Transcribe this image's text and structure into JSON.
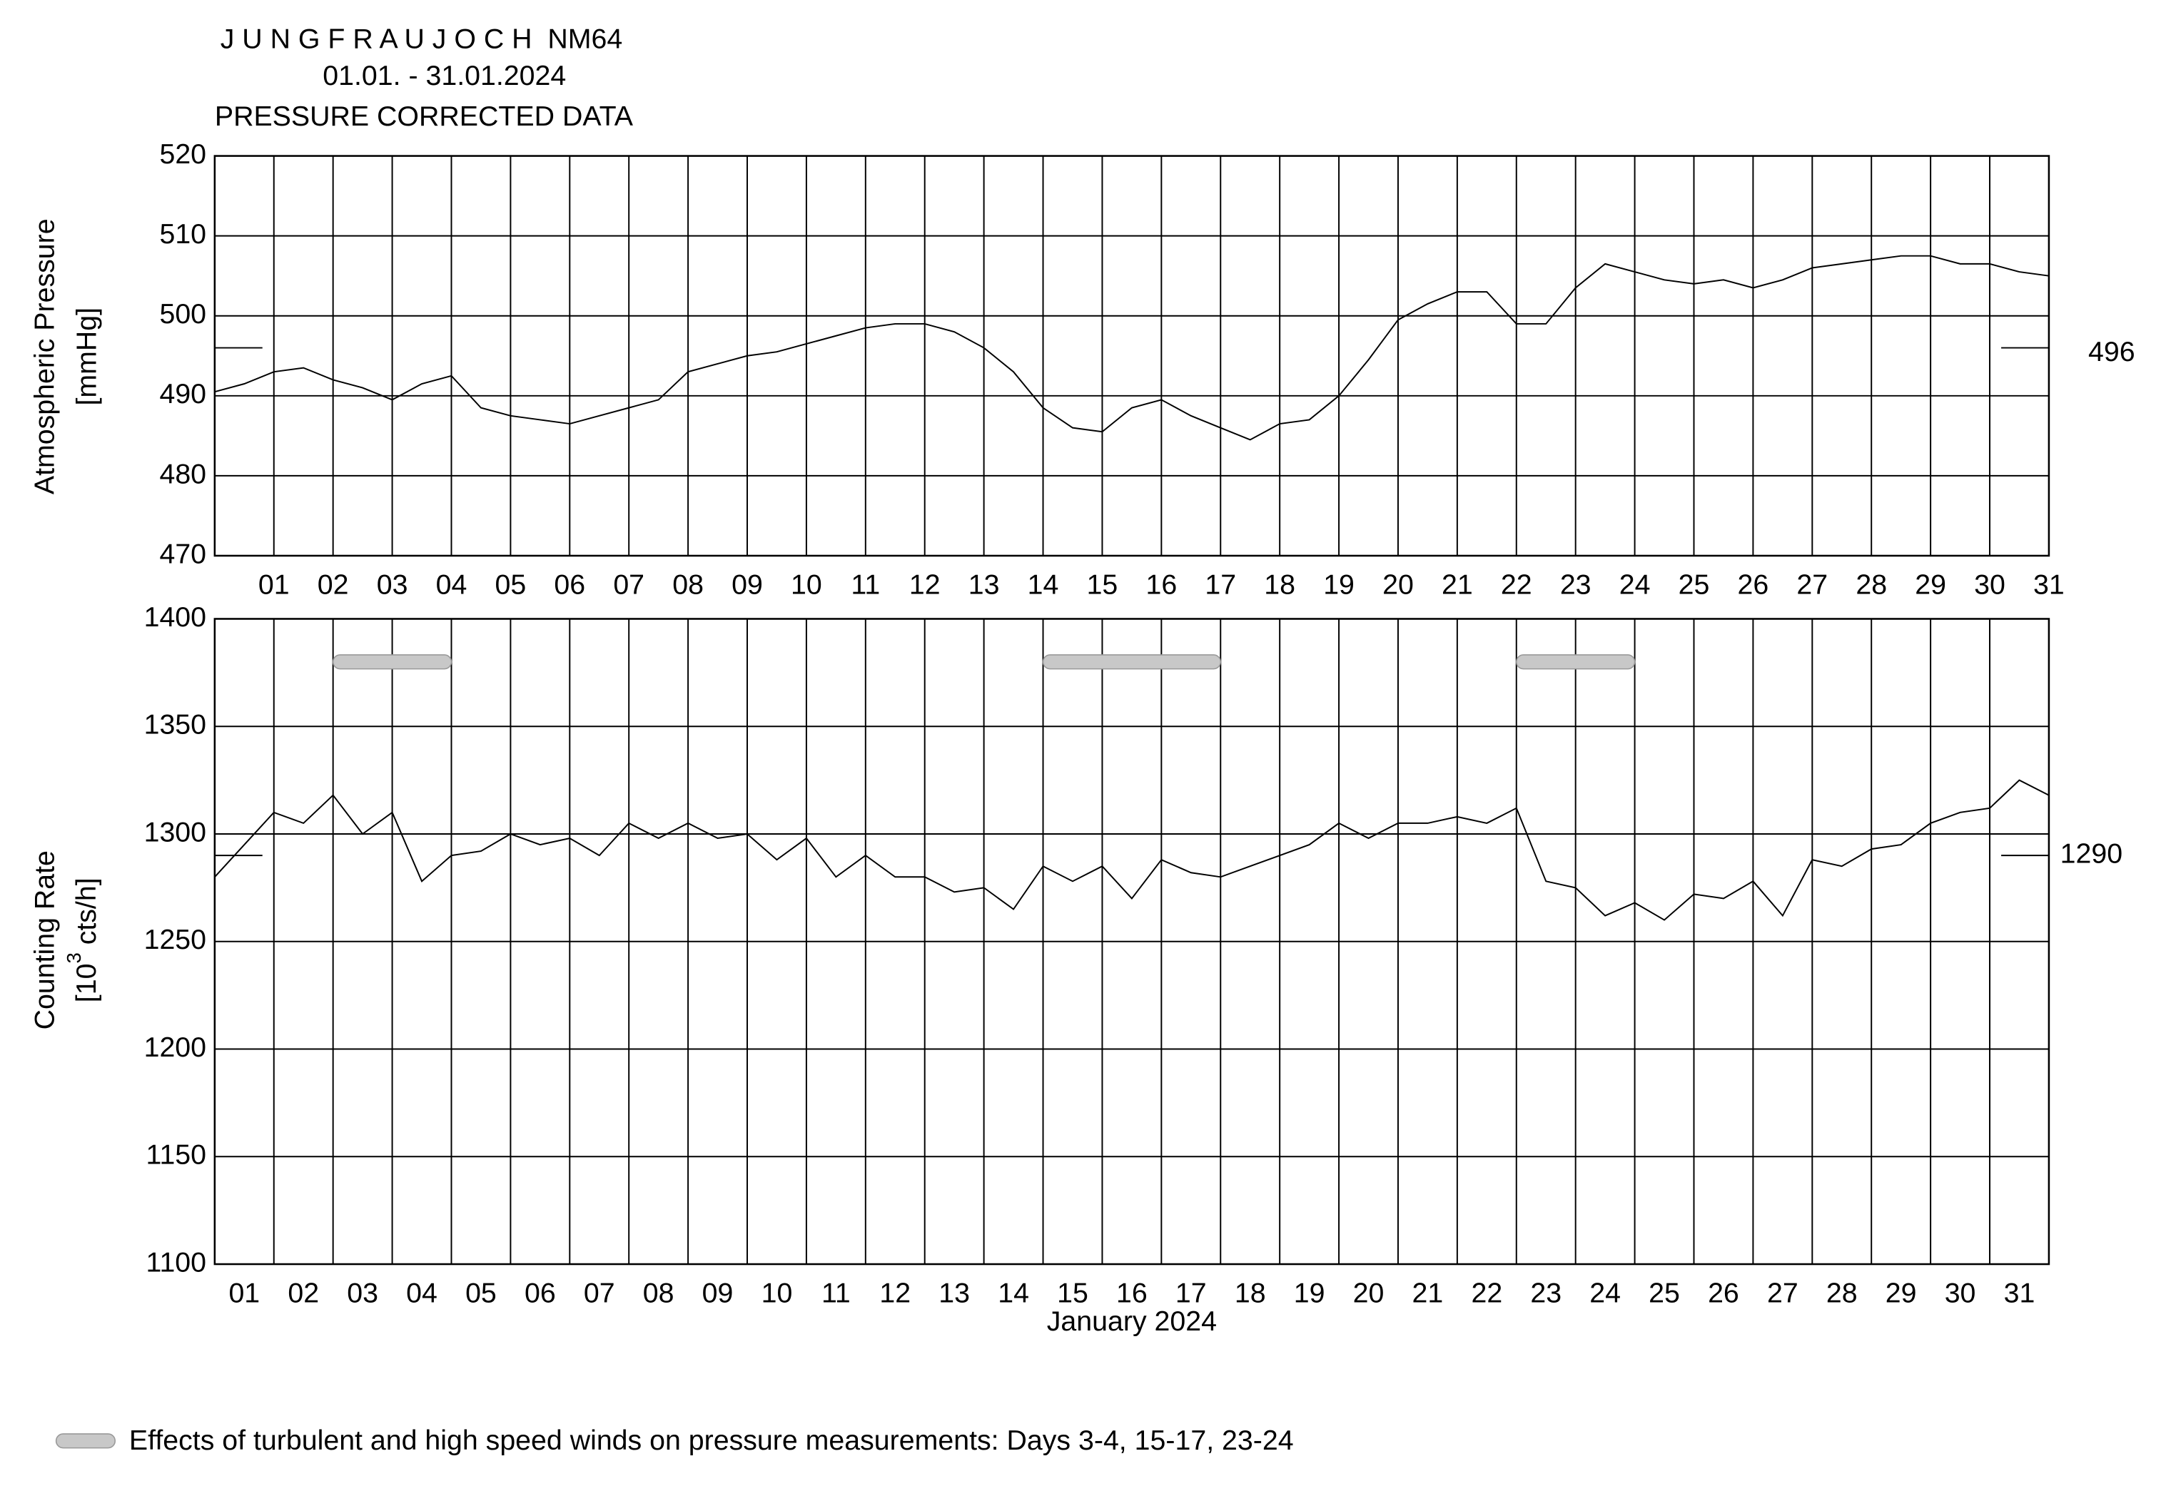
{
  "chart_data": [
    {
      "type": "line",
      "title": "J U N G F R A U J O C H  NM64",
      "subtitle": "01.01. - 31.01.2024",
      "note": "PRESSURE CORRECTED DATA",
      "ylabel": [
        "Atmospheric Pressure",
        "[mmHg]"
      ],
      "x": [
        0,
        0.5,
        1,
        1.5,
        2,
        2.5,
        3,
        3.5,
        4,
        4.5,
        5,
        5.5,
        6,
        6.5,
        7,
        7.5,
        8,
        8.5,
        9,
        9.5,
        10,
        10.5,
        11,
        11.5,
        12,
        12.5,
        13,
        13.5,
        14,
        14.5,
        15,
        15.5,
        16,
        16.5,
        17,
        17.5,
        18,
        18.5,
        19,
        19.5,
        20,
        20.5,
        21,
        21.5,
        22,
        22.5,
        23,
        23.5,
        24,
        24.5,
        25,
        25.5,
        26,
        26.5,
        27,
        27.5,
        28,
        28.5,
        29,
        29.5,
        30,
        30.5,
        31
      ],
      "values": [
        490.5,
        491.5,
        493,
        493.5,
        492,
        491,
        489.5,
        491.5,
        492.5,
        488.5,
        487.5,
        487,
        486.5,
        487.5,
        488.5,
        489.5,
        493,
        494,
        495,
        495.5,
        496.5,
        497.5,
        498.5,
        499,
        499,
        498,
        496,
        493,
        488.5,
        486,
        485.5,
        488.5,
        489.5,
        487.5,
        486,
        484.5,
        486.5,
        487,
        490,
        494.5,
        499.5,
        501.5,
        503,
        503,
        499,
        499,
        503.5,
        506.5,
        505.5,
        504.5,
        504,
        504.5,
        503.5,
        504.5,
        506,
        506.5,
        507,
        507.5,
        507.5,
        506.5,
        506.5,
        505.5,
        505
      ],
      "color": "#000000",
      "xlim": [
        0,
        31
      ],
      "ylim": [
        470,
        520
      ],
      "yticks": [
        470,
        480,
        490,
        500,
        510,
        520
      ],
      "xticks": [
        {
          "value": 1,
          "label": "01"
        },
        {
          "value": 2,
          "label": "02"
        },
        {
          "value": 3,
          "label": "03"
        },
        {
          "value": 4,
          "label": "04"
        },
        {
          "value": 5,
          "label": "05"
        },
        {
          "value": 6,
          "label": "06"
        },
        {
          "value": 7,
          "label": "07"
        },
        {
          "value": 8,
          "label": "08"
        },
        {
          "value": 9,
          "label": "09"
        },
        10,
        11,
        12,
        13,
        14,
        15,
        16,
        17,
        18,
        19,
        20,
        21,
        22,
        23,
        24,
        25,
        26,
        27,
        28,
        29,
        30,
        31
      ],
      "xgrid": [
        1,
        2,
        3,
        4,
        5,
        6,
        7,
        8,
        9,
        10,
        11,
        12,
        13,
        14,
        15,
        16,
        17,
        18,
        19,
        20,
        21,
        22,
        23,
        24,
        25,
        26,
        27,
        28,
        29,
        30
      ],
      "reference_line": 496,
      "grid": true
    },
    {
      "type": "line",
      "ylabel": [
        "Counting Rate"
      ],
      "ylabel_unit": {
        "pre": "[10",
        "sup": "3",
        "post": " cts/h]"
      },
      "xlabel": "January 2024",
      "x": [
        0,
        0.5,
        1,
        1.5,
        2,
        2.5,
        3,
        3.5,
        4,
        4.5,
        5,
        5.5,
        6,
        6.5,
        7,
        7.5,
        8,
        8.5,
        9,
        9.5,
        10,
        10.5,
        11,
        11.5,
        12,
        12.5,
        13,
        13.5,
        14,
        14.5,
        15,
        15.5,
        16,
        16.5,
        17,
        17.5,
        18,
        18.5,
        19,
        19.5,
        20,
        20.5,
        21,
        21.5,
        22,
        22.5,
        23,
        23.5,
        24,
        24.5,
        25,
        25.5,
        26,
        26.5,
        27,
        27.5,
        28,
        28.5,
        29,
        29.5,
        30,
        30.5,
        31
      ],
      "values": [
        1280,
        1295,
        1310,
        1305,
        1318,
        1300,
        1310,
        1278,
        1290,
        1292,
        1300,
        1295,
        1298,
        1290,
        1305,
        1298,
        1305,
        1298,
        1300,
        1288,
        1298,
        1280,
        1290,
        1280,
        1280,
        1273,
        1275,
        1265,
        1285,
        1278,
        1285,
        1270,
        1288,
        1282,
        1280,
        1285,
        1290,
        1295,
        1305,
        1298,
        1305,
        1305,
        1308,
        1305,
        1312,
        1278,
        1275,
        1262,
        1268,
        1260,
        1272,
        1270,
        1278,
        1262,
        1288,
        1285,
        1293,
        1295,
        1305,
        1310,
        1312,
        1325,
        1318
      ],
      "color": "#000000",
      "xlim": [
        0,
        31
      ],
      "ylim": [
        1100,
        1400
      ],
      "yticks": [
        1100,
        1150,
        1200,
        1250,
        1300,
        1350,
        1400
      ],
      "xticks": [
        {
          "value": 0.5,
          "label": "01"
        },
        {
          "value": 1.5,
          "label": "02"
        },
        {
          "value": 2.5,
          "label": "03"
        },
        {
          "value": 3.5,
          "label": "04"
        },
        {
          "value": 4.5,
          "label": "05"
        },
        {
          "value": 5.5,
          "label": "06"
        },
        {
          "value": 6.5,
          "label": "07"
        },
        {
          "value": 7.5,
          "label": "08"
        },
        {
          "value": 8.5,
          "label": "09"
        },
        {
          "value": 9.5,
          "label": "10"
        },
        {
          "value": 10.5,
          "label": "11"
        },
        {
          "value": 11.5,
          "label": "12"
        },
        {
          "value": 12.5,
          "label": "13"
        },
        {
          "value": 13.5,
          "label": "14"
        },
        {
          "value": 14.5,
          "label": "15"
        },
        {
          "value": 15.5,
          "label": "16"
        },
        {
          "value": 16.5,
          "label": "17"
        },
        {
          "value": 17.5,
          "label": "18"
        },
        {
          "value": 18.5,
          "label": "19"
        },
        {
          "value": 19.5,
          "label": "20"
        },
        {
          "value": 20.5,
          "label": "21"
        },
        {
          "value": 21.5,
          "label": "22"
        },
        {
          "value": 22.5,
          "label": "23"
        },
        {
          "value": 23.5,
          "label": "24"
        },
        {
          "value": 24.5,
          "label": "25"
        },
        {
          "value": 25.5,
          "label": "26"
        },
        {
          "value": 26.5,
          "label": "27"
        },
        {
          "value": 27.5,
          "label": "28"
        },
        {
          "value": 28.5,
          "label": "29"
        },
        {
          "value": 29.5,
          "label": "30"
        },
        {
          "value": 30.5,
          "label": "31"
        }
      ],
      "xgrid": [
        1,
        2,
        3,
        4,
        5,
        6,
        7,
        8,
        9,
        10,
        11,
        12,
        13,
        14,
        15,
        16,
        17,
        18,
        19,
        20,
        21,
        22,
        23,
        24,
        25,
        26,
        27,
        28,
        29,
        30
      ],
      "reference_line": 1290,
      "grid": true,
      "wind_periods": [
        [
          2,
          4
        ],
        [
          14,
          17
        ],
        [
          22,
          24
        ]
      ],
      "wind_level": 1380,
      "wind_color": "#c8c8c8",
      "wind_label": "Effects of turbulent and high speed winds on pressure measurements: Days 3-4, 15-17, 23-24"
    }
  ]
}
